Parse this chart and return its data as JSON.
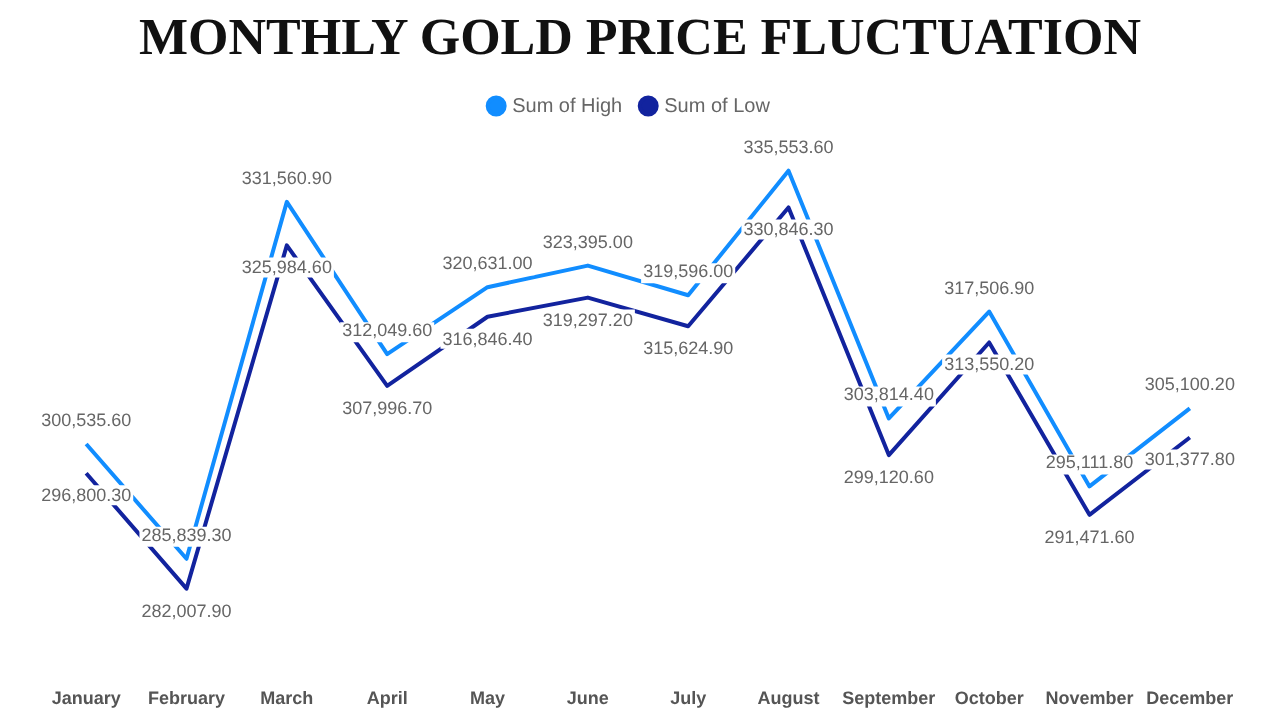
{
  "chart_data": {
    "type": "line",
    "title": "MONTHLY GOLD PRICE FLUCTUATION",
    "categories": [
      "January",
      "February",
      "March",
      "April",
      "May",
      "June",
      "July",
      "August",
      "September",
      "October",
      "November",
      "December"
    ],
    "series": [
      {
        "name": "Sum of High",
        "color": "#118dff",
        "values": [
          300535.6,
          285839.3,
          331560.9,
          312049.6,
          320631.0,
          323395.0,
          319596.0,
          335553.6,
          303814.4,
          317506.9,
          295111.8,
          305100.2
        ],
        "value_labels": [
          "300,535.60",
          "285,839.30",
          "331,560.90",
          "312,049.60",
          "320,631.00",
          "323,395.00",
          "319,596.00",
          "335,553.60",
          "303,814.40",
          "317,506.90",
          "295,111.80",
          "305,100.20"
        ]
      },
      {
        "name": "Sum of Low",
        "color": "#12239e",
        "values": [
          296800.3,
          282007.9,
          325984.6,
          307996.7,
          316846.4,
          319297.2,
          315624.9,
          330846.3,
          299120.6,
          313550.2,
          291471.6,
          301377.8
        ],
        "value_labels": [
          "296,800.30",
          "282,007.90",
          "325,984.60",
          "307,996.70",
          "316,846.40",
          "319,297.20",
          "315,624.90",
          "330,846.30",
          "299,120.60",
          "313,550.20",
          "291,471.60",
          "301,377.80"
        ]
      }
    ],
    "legend": "top",
    "grid": false,
    "marker": "none",
    "line_style": "solid"
  }
}
